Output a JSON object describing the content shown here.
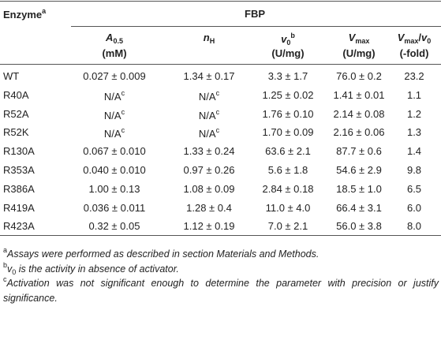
{
  "table": {
    "stub_header": [
      {
        "text": "Enzyme",
        "style": "b"
      },
      {
        "text": "a",
        "style": "sup"
      }
    ],
    "group_header": "FBP",
    "columns": [
      {
        "parts": [
          {
            "text": "A",
            "style": "i"
          },
          {
            "text": "0.5",
            "style": "sub"
          }
        ],
        "unit": "(mM)"
      },
      {
        "parts": [
          {
            "text": "n",
            "style": "i"
          },
          {
            "text": "H",
            "style": "sub"
          }
        ],
        "unit": null
      },
      {
        "parts": [
          {
            "text": "v",
            "style": "i"
          },
          {
            "text": "0",
            "style": "sub"
          },
          {
            "text": "b",
            "style": "sup"
          }
        ],
        "unit": "(U/mg)"
      },
      {
        "parts": [
          {
            "text": "V",
            "style": "i"
          },
          {
            "text": "max",
            "style": "sub"
          }
        ],
        "unit": "(U/mg)"
      },
      {
        "parts": [
          {
            "text": "V",
            "style": "i"
          },
          {
            "text": "max",
            "style": "sub"
          },
          {
            "text": "/",
            "style": "b"
          },
          {
            "text": "v",
            "style": "i"
          },
          {
            "text": "0",
            "style": "sub"
          }
        ],
        "unit": "(-fold)"
      }
    ],
    "rows": [
      [
        "WT",
        "0.027 ± 0.009",
        "1.34 ± 0.17",
        "3.3 ± 1.7",
        "76.0 ± 0.2",
        "23.2"
      ],
      [
        "R40A",
        {
          "text": "N/A",
          "sup": "c"
        },
        {
          "text": "N/A",
          "sup": "c"
        },
        "1.25 ± 0.02",
        "1.41 ± 0.01",
        "1.1"
      ],
      [
        "R52A",
        {
          "text": "N/A",
          "sup": "c"
        },
        {
          "text": "N/A",
          "sup": "c"
        },
        "1.76 ± 0.10",
        "2.14 ± 0.08",
        "1.2"
      ],
      [
        "R52K",
        {
          "text": "N/A",
          "sup": "c"
        },
        {
          "text": "N/A",
          "sup": "c"
        },
        "1.70 ± 0.09",
        "2.16 ± 0.06",
        "1.3"
      ],
      [
        "R130A",
        "0.067 ± 0.010",
        "1.33 ± 0.24",
        "63.6 ± 2.1",
        "87.7 ± 0.6",
        "1.4"
      ],
      [
        "R353A",
        "0.040 ± 0.010",
        "0.97 ± 0.26",
        "5.6 ± 1.8",
        "54.6 ± 2.9",
        "9.8"
      ],
      [
        "R386A",
        "1.00 ± 0.13",
        "1.08 ± 0.09",
        "2.84 ± 0.18",
        "18.5 ± 1.0",
        "6.5"
      ],
      [
        "R419A",
        "0.036 ± 0.011",
        "1.28 ± 0.4",
        "11.0 ± 4.0",
        "66.4 ± 3.1",
        "6.0"
      ],
      [
        "R423A",
        "0.32 ± 0.05",
        "1.12 ± 0.19",
        "7.0 ± 2.1",
        "56.0 ± 3.8",
        "8.0"
      ]
    ],
    "footnotes": [
      [
        {
          "text": "a",
          "style": "sup"
        },
        {
          "text": "Assays were performed as described in section Materials and Methods.",
          "style": "i"
        }
      ],
      [
        {
          "text": "b",
          "style": "sup"
        },
        {
          "text": "v",
          "style": "i"
        },
        {
          "text": "0",
          "style": "sub"
        },
        {
          "text": " is the activity in absence of activator.",
          "style": "i"
        }
      ],
      [
        {
          "text": "c",
          "style": "sup"
        },
        {
          "text": "Activation was not significant enough to determine the parameter with precision or justify significance.",
          "style": "i"
        }
      ]
    ]
  }
}
